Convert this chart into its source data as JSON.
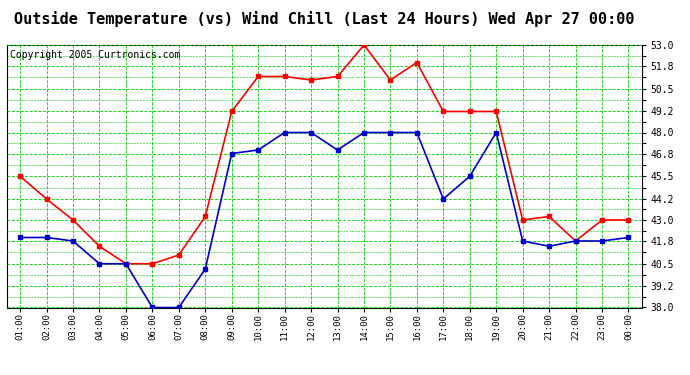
{
  "title": "Outside Temperature (vs) Wind Chill (Last 24 Hours) Wed Apr 27 00:00",
  "copyright": "Copyright 2005 Curtronics.com",
  "hours": [
    "01:00",
    "02:00",
    "03:00",
    "04:00",
    "05:00",
    "06:00",
    "07:00",
    "08:00",
    "09:00",
    "10:00",
    "11:00",
    "12:00",
    "13:00",
    "14:00",
    "15:00",
    "16:00",
    "17:00",
    "18:00",
    "19:00",
    "20:00",
    "21:00",
    "22:00",
    "23:00",
    "00:00"
  ],
  "outside_temp": [
    45.5,
    44.2,
    43.0,
    41.5,
    40.5,
    40.5,
    41.0,
    43.2,
    49.2,
    51.2,
    51.2,
    51.0,
    51.2,
    53.0,
    51.0,
    52.0,
    49.2,
    49.2,
    49.2,
    43.0,
    43.2,
    41.8,
    43.0,
    43.0
  ],
  "wind_chill": [
    42.0,
    42.0,
    41.8,
    40.5,
    40.5,
    38.0,
    38.0,
    40.2,
    46.8,
    47.0,
    48.0,
    48.0,
    47.0,
    48.0,
    48.0,
    48.0,
    44.2,
    45.5,
    48.0,
    41.8,
    41.5,
    41.8,
    41.8,
    42.0
  ],
  "temp_color": "#ff0000",
  "chill_color": "#0000cc",
  "bg_color": "#ffffff",
  "plot_bg": "#ffffff",
  "grid_color": "#00cc00",
  "ymin": 38.0,
  "ymax": 53.0,
  "yticks": [
    38.0,
    39.2,
    40.5,
    41.8,
    43.0,
    44.2,
    45.5,
    46.8,
    48.0,
    49.2,
    50.5,
    51.8,
    53.0
  ],
  "title_fontsize": 11,
  "copyright_fontsize": 7,
  "marker_size": 3,
  "line_width": 1.2
}
